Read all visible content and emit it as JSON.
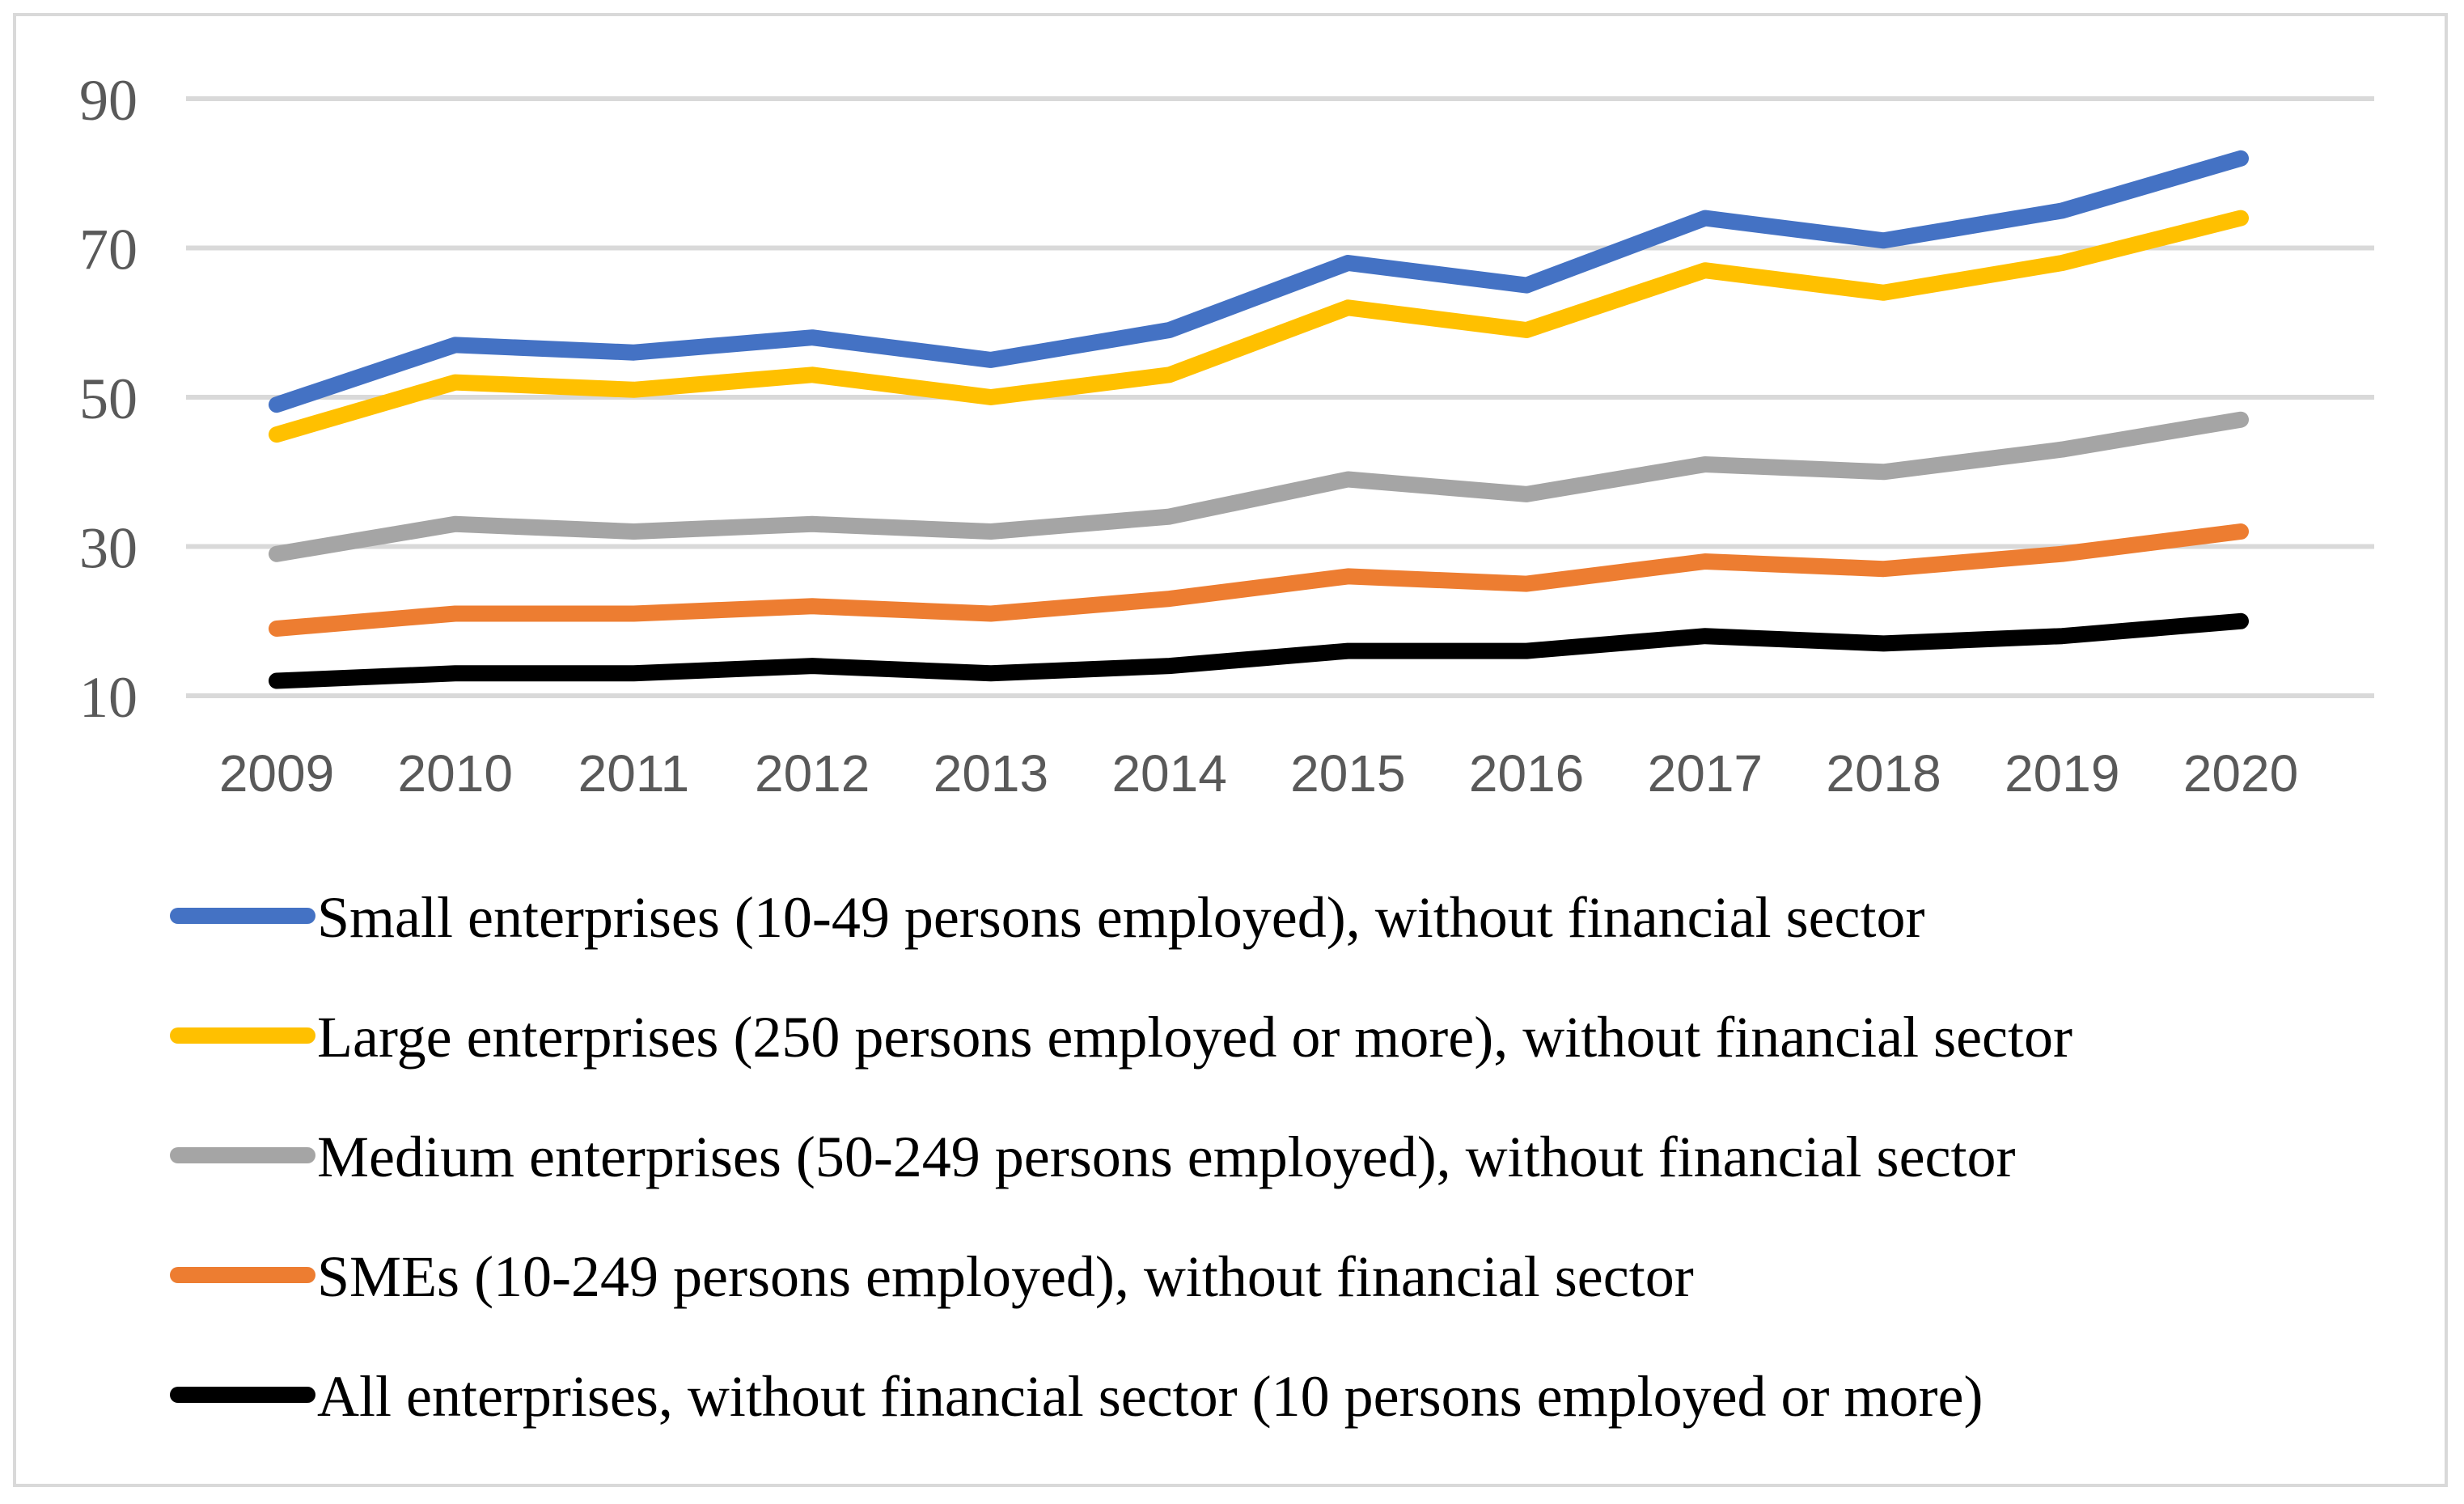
{
  "chart_data": {
    "type": "line",
    "title": "",
    "xlabel": "",
    "ylabel": "",
    "ylim": [
      10,
      90
    ],
    "yticks": [
      10,
      30,
      50,
      70,
      90
    ],
    "grid": true,
    "legend_position": "bottom",
    "categories": [
      "2009",
      "2010",
      "2011",
      "2012",
      "2013",
      "2014",
      "2015",
      "2016",
      "2017",
      "2018",
      "2019",
      "2020"
    ],
    "series": [
      {
        "name": "Small enterprises (10-49 persons employed), without financial sector",
        "color": "#4472c4",
        "values": [
          49,
          57,
          56,
          58,
          55,
          59,
          68,
          65,
          74,
          71,
          75,
          82
        ]
      },
      {
        "name": "Large enterprises (250 persons employed or more), without financial sector",
        "color": "#ffc000",
        "values": [
          45,
          52,
          51,
          53,
          50,
          53,
          62,
          59,
          67,
          64,
          68,
          74
        ]
      },
      {
        "name": "Medium enterprises (50-249 persons employed), without financial sector",
        "color": "#a5a5a5",
        "values": [
          29,
          33,
          32,
          33,
          32,
          34,
          39,
          37,
          41,
          40,
          43,
          47
        ]
      },
      {
        "name": "SMEs (10-249 persons employed), without financial sector",
        "color": "#ed7d31",
        "values": [
          19,
          21,
          21,
          22,
          21,
          23,
          26,
          25,
          28,
          27,
          29,
          32
        ]
      },
      {
        "name": "All enterprises, without financial sector (10 persons employed or more)",
        "color": "#000000",
        "values": [
          12,
          13,
          13,
          14,
          13,
          14,
          16,
          16,
          18,
          17,
          18,
          20
        ]
      }
    ]
  }
}
